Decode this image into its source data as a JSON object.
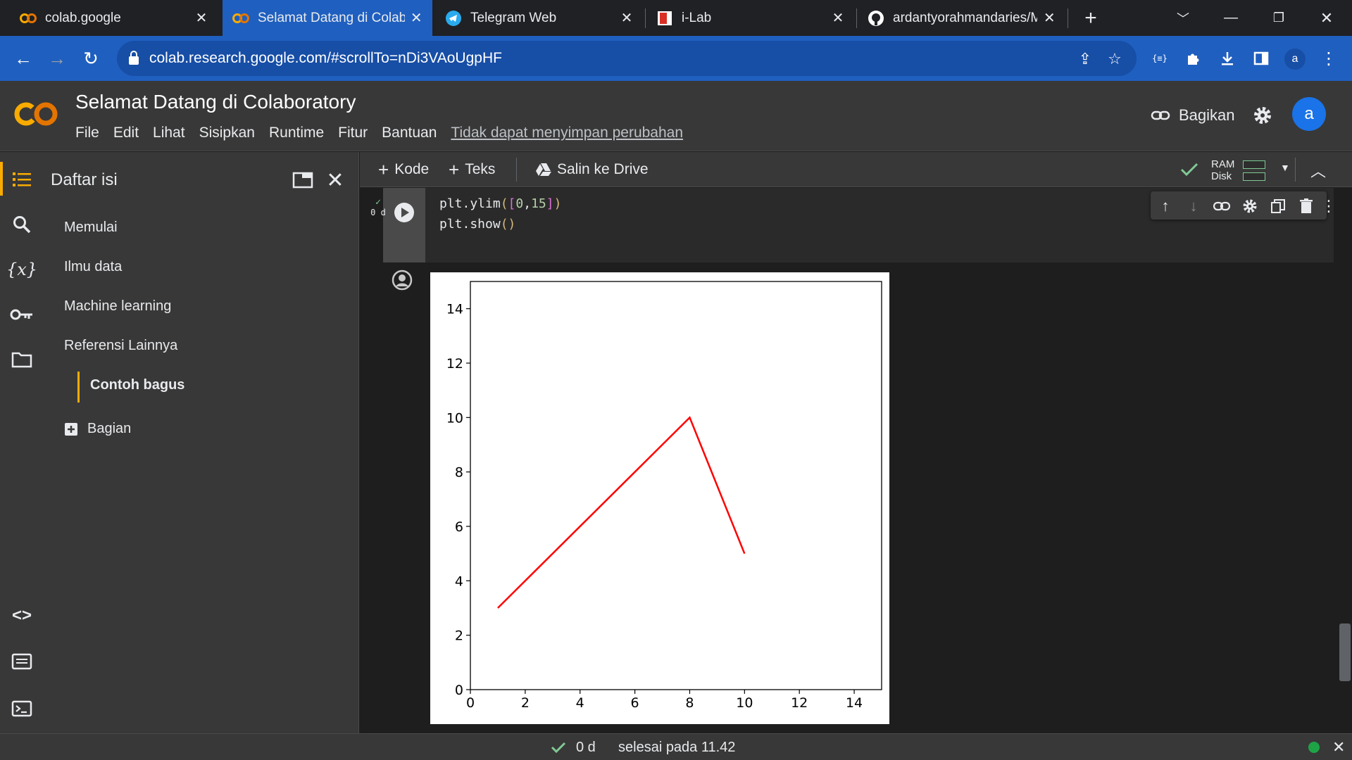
{
  "browser": {
    "tabs": [
      {
        "title": "colab.google",
        "icon": "colab-icon",
        "active": false
      },
      {
        "title": "Selamat Datang di Colabora",
        "icon": "colab-icon",
        "active": true
      },
      {
        "title": "Telegram Web",
        "icon": "telegram-icon",
        "active": false
      },
      {
        "title": "i-Lab",
        "icon": "ilab-icon",
        "active": false
      },
      {
        "title": "ardantyorahmandaries/M",
        "icon": "github-icon",
        "active": false
      }
    ],
    "url": "colab.research.google.com/#scrollTo=nDi3VAoUgpHF",
    "profile_initial": "a",
    "accent": "#1f5fbf"
  },
  "colab": {
    "title": "Selamat Datang di Colaboratory",
    "menu": [
      "File",
      "Edit",
      "Lihat",
      "Sisipkan",
      "Runtime",
      "Fitur",
      "Bantuan"
    ],
    "unsaved_notice": "Tidak dapat menyimpan perubahan",
    "share_label": "Bagikan",
    "avatar_initial": "a"
  },
  "sidepanel": {
    "title": "Daftar isi",
    "items": [
      "Memulai",
      "Ilmu data",
      "Machine learning",
      "Referensi Lainnya"
    ],
    "sub_item": "Contoh bagus",
    "add_section": "Bagian"
  },
  "notebook_toolbar": {
    "code_label": "Kode",
    "text_label": "Teks",
    "copy_drive_label": "Salin ke Drive",
    "ram_label": "RAM",
    "disk_label": "Disk"
  },
  "cell": {
    "exec_time": "0 d",
    "code_lines": [
      "plt.ylim([0,15])",
      "plt.show()"
    ]
  },
  "status": {
    "elapsed": "0 d",
    "message": "selesai pada 11.42"
  },
  "chart_data": {
    "type": "line",
    "x": [
      1,
      8,
      10
    ],
    "y": [
      3,
      10,
      5
    ],
    "color": "#ff0000",
    "xlim": [
      0,
      15
    ],
    "ylim": [
      0,
      15
    ],
    "xticks": [
      0,
      2,
      4,
      6,
      8,
      10,
      12,
      14
    ],
    "yticks": [
      0,
      2,
      4,
      6,
      8,
      10,
      12,
      14
    ],
    "title": "",
    "xlabel": "",
    "ylabel": ""
  }
}
